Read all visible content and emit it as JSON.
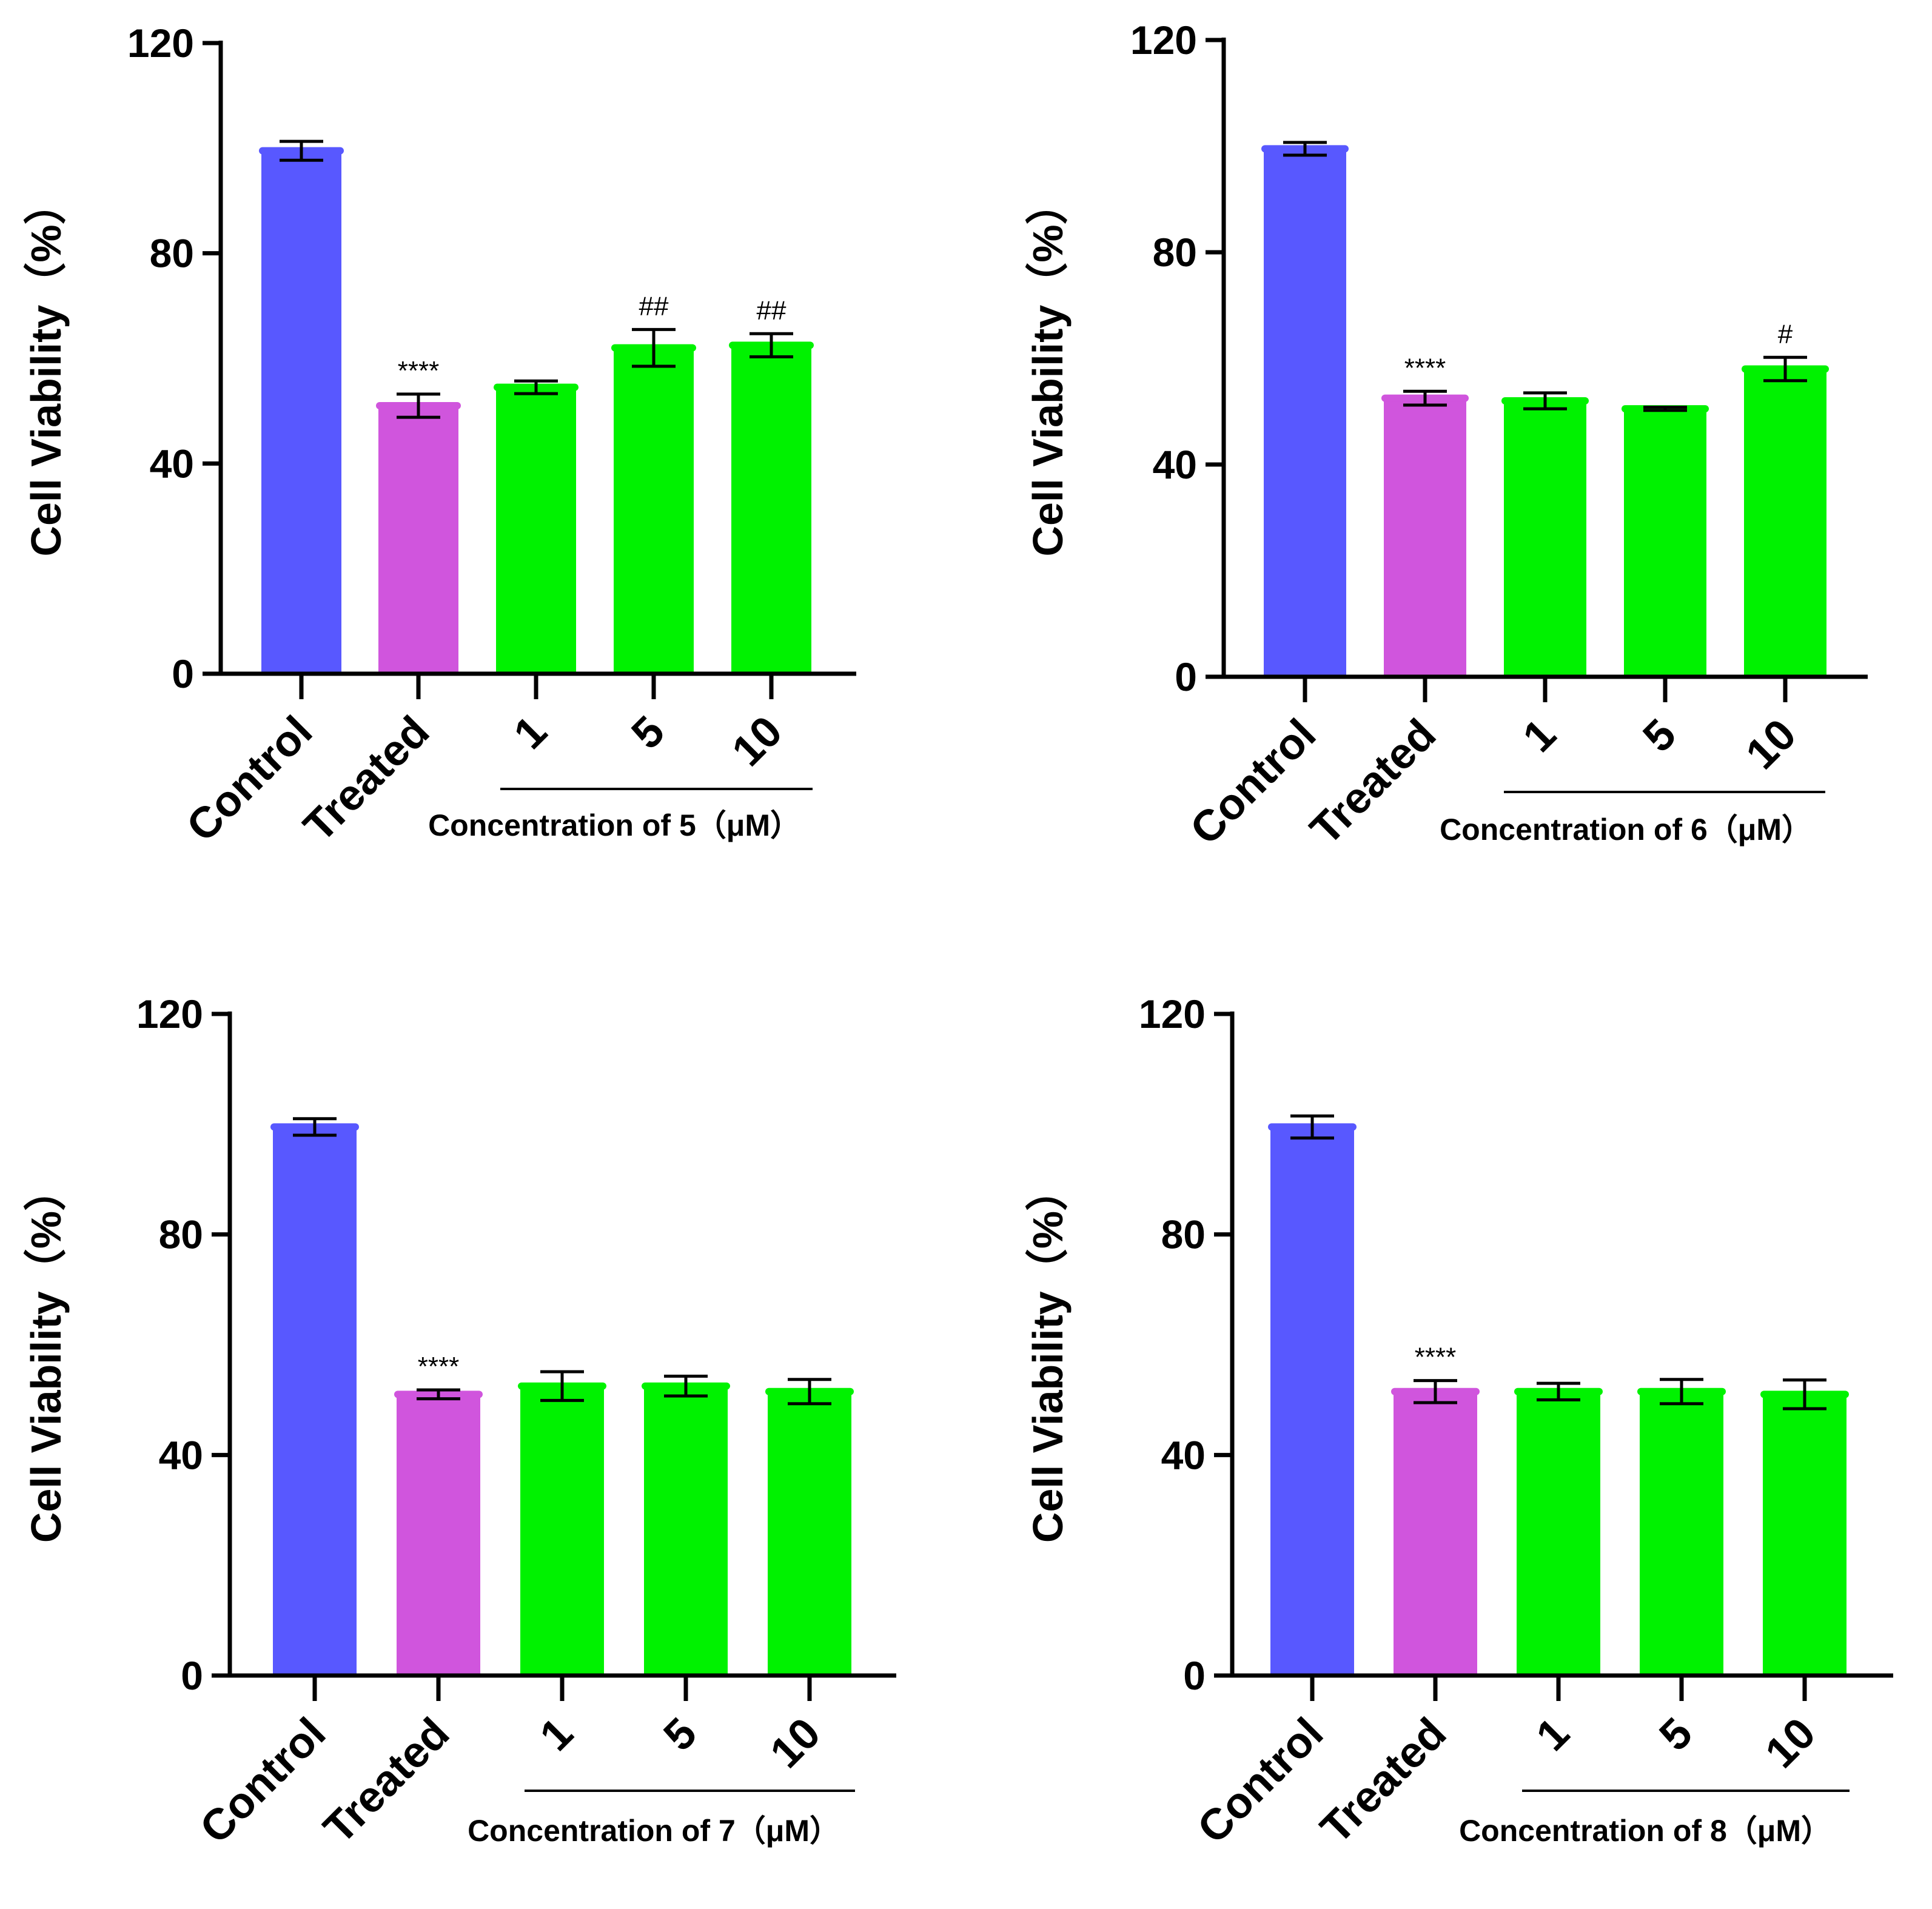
{
  "colors": {
    "control": "#5858FF",
    "treated": "#D055DD",
    "concentration": "#00F200",
    "axis": "#000000"
  },
  "chart_data": [
    {
      "type": "bar",
      "ylabel": "Cell Viability（%）",
      "ylim": [
        0,
        120
      ],
      "yticks": [
        "0",
        "40",
        "80",
        "120"
      ],
      "categories": [
        "Control",
        "Treated",
        "1",
        "5",
        "10"
      ],
      "values": [
        99.5,
        51,
        54.5,
        62,
        62.5
      ],
      "errors": [
        1.8,
        2.2,
        1.2,
        3.5,
        2.2
      ],
      "annotations": [
        "",
        "****",
        "",
        "##",
        "##"
      ],
      "group_label": "Concentration of 5（μM）"
    },
    {
      "type": "bar",
      "ylabel": "Cell Viability（%）",
      "ylim": [
        0,
        120
      ],
      "yticks": [
        "0",
        "40",
        "80",
        "120"
      ],
      "categories": [
        "Control",
        "Treated",
        "1",
        "5",
        "10"
      ],
      "values": [
        99.5,
        52.5,
        52,
        50.5,
        58
      ],
      "errors": [
        1.2,
        1.3,
        1.5,
        0.3,
        2.2
      ],
      "annotations": [
        "",
        "****",
        "",
        "",
        "#"
      ],
      "group_label": "Concentration of 6（μM）"
    },
    {
      "type": "bar",
      "ylabel": "Cell Viability（%）",
      "ylim": [
        0,
        120
      ],
      "yticks": [
        "0",
        "40",
        "80",
        "120"
      ],
      "categories": [
        "Control",
        "Treated",
        "1",
        "5",
        "10"
      ],
      "values": [
        99.5,
        51,
        52.5,
        52.5,
        51.5
      ],
      "errors": [
        1.5,
        0.8,
        2.6,
        1.8,
        2.2
      ],
      "annotations": [
        "",
        "****",
        "",
        "",
        ""
      ],
      "group_label": "Concentration of 7（μM）"
    },
    {
      "type": "bar",
      "ylabel": "Cell Viability（%）",
      "ylim": [
        0,
        120
      ],
      "yticks": [
        "0",
        "40",
        "80",
        "120"
      ],
      "categories": [
        "Control",
        "Treated",
        "1",
        "5",
        "10"
      ],
      "values": [
        99.5,
        51.5,
        51.5,
        51.5,
        51
      ],
      "errors": [
        2.0,
        2.0,
        1.5,
        2.2,
        2.6
      ],
      "annotations": [
        "",
        "****",
        "",
        "",
        ""
      ],
      "group_label": "Concentration of 8（μM）"
    }
  ]
}
